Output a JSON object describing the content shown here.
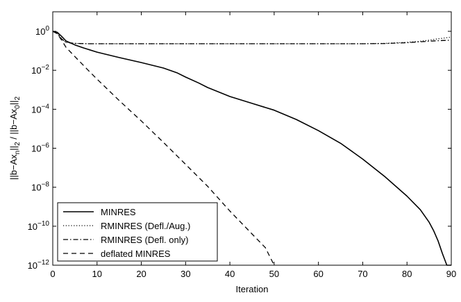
{
  "chart_data": {
    "type": "line",
    "title": "",
    "xlabel": "Iteration",
    "ylabel": "||b−Ax_n||_2 / ||b−Ax_0||_2",
    "y_scale": "log",
    "xlim": [
      0,
      90
    ],
    "ylim": [
      1e-12,
      10
    ],
    "xticks": [
      0,
      10,
      20,
      30,
      40,
      50,
      60,
      70,
      80,
      90
    ],
    "xtick_labels": [
      "0",
      "10",
      "20",
      "30",
      "40",
      "50",
      "60",
      "70",
      "80",
      "90"
    ],
    "yticks": [
      1,
      0.01,
      0.0001,
      1e-06,
      1e-08,
      1e-10,
      1e-12
    ],
    "ytick_labels": [
      {
        "base": "10",
        "exp": "0"
      },
      {
        "base": "10",
        "exp": "−2"
      },
      {
        "base": "10",
        "exp": "−4"
      },
      {
        "base": "10",
        "exp": "−6"
      },
      {
        "base": "10",
        "exp": "−8"
      },
      {
        "base": "10",
        "exp": "−10"
      },
      {
        "base": "10",
        "exp": "−12"
      }
    ],
    "grid": false,
    "legend_position": "bottom-left",
    "series": [
      {
        "name": "MINRES",
        "line_style": "solid",
        "x": [
          0,
          1,
          2,
          3,
          5,
          7,
          10,
          15,
          20,
          25,
          28,
          30,
          33,
          35,
          40,
          45,
          50,
          55,
          60,
          65,
          70,
          75,
          80,
          83,
          85,
          86,
          87,
          88,
          89,
          90
        ],
        "y": [
          1.0,
          0.9,
          0.55,
          0.32,
          0.2,
          0.14,
          0.085,
          0.045,
          0.025,
          0.013,
          0.0075,
          0.0045,
          0.0022,
          0.0013,
          0.00045,
          0.0002,
          9e-05,
          3e-05,
          8e-06,
          1.8e-06,
          2.8e-07,
          3.5e-08,
          3.5e-09,
          7e-10,
          1.6e-10,
          6e-11,
          1.8e-11,
          4e-12,
          1e-12,
          1e-12
        ]
      },
      {
        "name": "RMINRES (Defl./Aug.)",
        "line_style": "dotted",
        "x": [
          0,
          1,
          2,
          3,
          5,
          8,
          10,
          20,
          30,
          40,
          50,
          60,
          70,
          75,
          80,
          83,
          85,
          87,
          90
        ],
        "y": [
          1.0,
          0.8,
          0.4,
          0.27,
          0.24,
          0.23,
          0.23,
          0.23,
          0.23,
          0.23,
          0.23,
          0.23,
          0.23,
          0.24,
          0.27,
          0.31,
          0.35,
          0.41,
          0.5
        ]
      },
      {
        "name": "RMINRES (Defl. only)",
        "line_style": "dash-dot",
        "x": [
          0,
          1,
          2,
          3,
          5,
          8,
          10,
          20,
          30,
          40,
          50,
          60,
          70,
          75,
          80,
          83,
          85,
          87,
          90
        ],
        "y": [
          1.0,
          0.8,
          0.4,
          0.27,
          0.24,
          0.23,
          0.23,
          0.23,
          0.23,
          0.23,
          0.23,
          0.23,
          0.23,
          0.235,
          0.26,
          0.29,
          0.31,
          0.33,
          0.35
        ]
      },
      {
        "name": "deflated MINRES",
        "line_style": "dashed",
        "x": [
          0,
          1,
          2,
          3,
          5,
          8,
          10,
          15,
          20,
          25,
          30,
          35,
          40,
          45,
          48,
          50
        ],
        "y": [
          1.0,
          0.75,
          0.35,
          0.15,
          0.05,
          0.01,
          0.0035,
          0.00028,
          2.5e-05,
          2e-06,
          1.5e-07,
          1.1e-08,
          6e-10,
          4e-11,
          8e-12,
          1e-12
        ]
      }
    ]
  }
}
